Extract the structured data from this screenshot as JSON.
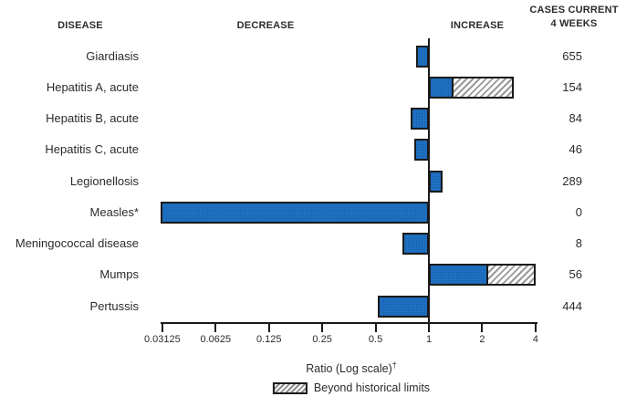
{
  "header": {
    "disease": "DISEASE",
    "decrease": "DECREASE",
    "increase": "INCREASE",
    "cases_current": "CASES CURRENT",
    "four_weeks": "4 WEEKS"
  },
  "chart_data": {
    "type": "bar",
    "orientation": "horizontal-diverging",
    "scale": "log2",
    "baseline": 1,
    "axis": {
      "label": "Ratio (Log scale)",
      "label_superscript": "†",
      "ticks": [
        0.03125,
        0.0625,
        0.125,
        0.25,
        0.5,
        1,
        2,
        4
      ],
      "tick_labels": [
        "0.03125",
        "0.0625",
        "0.125",
        "0.25",
        "0.5",
        "1",
        "2",
        "4"
      ],
      "range": [
        0.03125,
        4
      ],
      "grid": false
    },
    "legend": {
      "position": "bottom-center",
      "hatched_label": "Beyond historical limits"
    },
    "rows": [
      {
        "disease": "Giardiasis",
        "cases": "655",
        "ratio": 0.87,
        "beyond_start": null
      },
      {
        "disease": "Hepatitis A, acute",
        "cases": "154",
        "ratio": 3.0,
        "beyond_start": 1.38
      },
      {
        "disease": "Hepatitis B, acute",
        "cases": "84",
        "ratio": 0.81,
        "beyond_start": null
      },
      {
        "disease": "Hepatitis C, acute",
        "cases": "46",
        "ratio": 0.85,
        "beyond_start": null
      },
      {
        "disease": "Legionellosis",
        "cases": "289",
        "ratio": 1.17,
        "beyond_start": null
      },
      {
        "disease": "Measles*",
        "cases": "0",
        "ratio": 0.03125,
        "beyond_start": null
      },
      {
        "disease": "Meningococcal disease",
        "cases": "8",
        "ratio": 0.73,
        "beyond_start": null
      },
      {
        "disease": "Mumps",
        "cases": "56",
        "ratio": 4.0,
        "beyond_start": 2.15
      },
      {
        "disease": "Pertussis",
        "cases": "444",
        "ratio": 0.53,
        "beyond_start": null
      }
    ],
    "colors": {
      "bar_fill": "#1e6fc0",
      "bar_border": "#1a1a1a",
      "hatch_stripe": "#9a9a9a",
      "axis": "#1a1a1a",
      "text": "#2b2b2b"
    }
  }
}
